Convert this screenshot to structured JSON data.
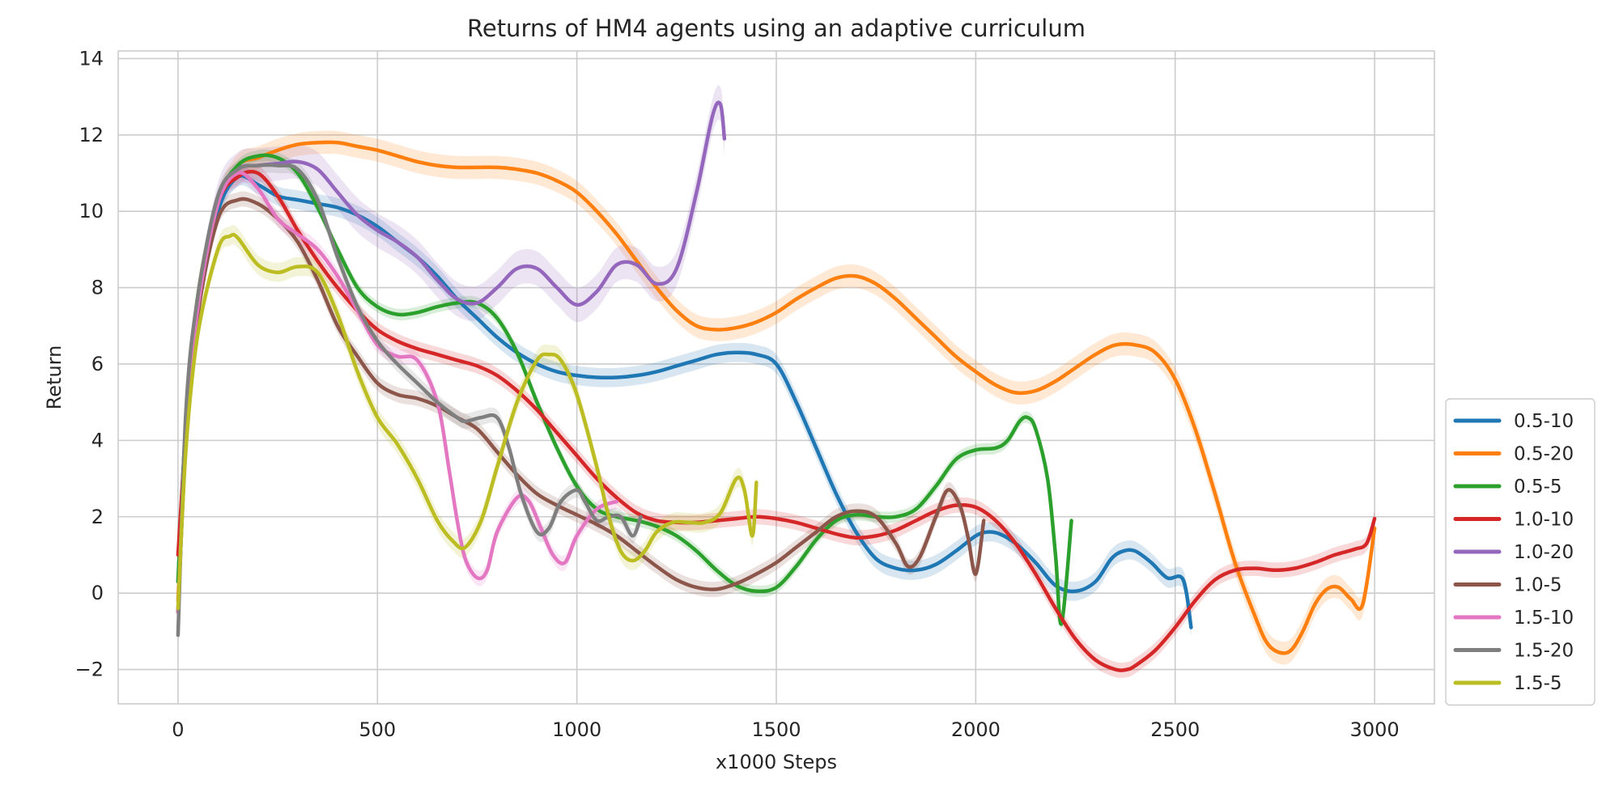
{
  "chart_data": {
    "type": "line",
    "title": "Returns of HM4 agents using an adaptive curriculum",
    "xlabel": "x1000 Steps",
    "ylabel": "Return",
    "xlim": [
      -150,
      3150
    ],
    "ylim": [
      -2.9,
      14.2
    ],
    "xticks": [
      0,
      500,
      1000,
      1500,
      2000,
      2500,
      3000
    ],
    "xtick_labels": [
      "0",
      "500",
      "1000",
      "1500",
      "2000",
      "2500",
      "3000"
    ],
    "yticks": [
      -2,
      0,
      2,
      4,
      6,
      8,
      10,
      12,
      14
    ],
    "ytick_labels": [
      "−2",
      "0",
      "2",
      "4",
      "6",
      "8",
      "10",
      "12",
      "14"
    ],
    "grid": true,
    "legend_position": "right, outside, lower",
    "series": [
      {
        "name": "0.5-10",
        "color": "#1f77b4",
        "band": 0.25,
        "x": [
          0,
          20,
          50,
          100,
          150,
          200,
          250,
          300,
          350,
          400,
          450,
          500,
          550,
          600,
          650,
          700,
          750,
          800,
          850,
          900,
          950,
          1000,
          1050,
          1100,
          1150,
          1200,
          1250,
          1300,
          1350,
          1400,
          1450,
          1500,
          1550,
          1600,
          1650,
          1700,
          1750,
          1800,
          1850,
          1900,
          1950,
          2000,
          2030,
          2060,
          2100,
          2150,
          2200,
          2250,
          2300,
          2340,
          2370,
          2400,
          2440,
          2480,
          2520,
          2540
        ],
        "y": [
          0.3,
          4.5,
          7.5,
          10.0,
          10.9,
          10.7,
          10.4,
          10.3,
          10.2,
          10.1,
          9.9,
          9.6,
          9.2,
          8.8,
          8.3,
          7.7,
          7.2,
          6.7,
          6.3,
          6.0,
          5.8,
          5.7,
          5.65,
          5.65,
          5.7,
          5.8,
          5.95,
          6.1,
          6.25,
          6.3,
          6.25,
          6.0,
          5.0,
          3.8,
          2.6,
          1.6,
          0.9,
          0.65,
          0.6,
          0.75,
          1.1,
          1.5,
          1.6,
          1.55,
          1.3,
          0.8,
          0.2,
          0.05,
          0.3,
          0.9,
          1.1,
          1.1,
          0.8,
          0.4,
          0.35,
          -0.9
        ]
      },
      {
        "name": "0.5-20",
        "color": "#ff7f0e",
        "band": 0.3,
        "x": [
          0,
          20,
          50,
          100,
          150,
          200,
          250,
          300,
          350,
          400,
          450,
          500,
          550,
          600,
          650,
          700,
          750,
          800,
          850,
          900,
          950,
          1000,
          1050,
          1100,
          1150,
          1200,
          1250,
          1300,
          1350,
          1400,
          1450,
          1500,
          1550,
          1600,
          1650,
          1700,
          1750,
          1800,
          1850,
          1900,
          1950,
          2000,
          2050,
          2100,
          2150,
          2200,
          2250,
          2300,
          2350,
          2400,
          2450,
          2500,
          2550,
          2600,
          2650,
          2700,
          2730,
          2760,
          2790,
          2820,
          2850,
          2880,
          2910,
          2940,
          2970,
          3000
        ],
        "y": [
          -0.2,
          4.0,
          7.8,
          10.2,
          11.2,
          11.4,
          11.6,
          11.75,
          11.8,
          11.8,
          11.7,
          11.6,
          11.45,
          11.3,
          11.2,
          11.15,
          11.15,
          11.15,
          11.1,
          11.0,
          10.8,
          10.5,
          10.0,
          9.4,
          8.7,
          8.0,
          7.4,
          7.0,
          6.9,
          6.95,
          7.1,
          7.35,
          7.7,
          8.0,
          8.25,
          8.3,
          8.1,
          7.7,
          7.2,
          6.7,
          6.2,
          5.8,
          5.45,
          5.25,
          5.3,
          5.55,
          5.9,
          6.25,
          6.5,
          6.5,
          6.3,
          5.6,
          4.3,
          2.6,
          0.8,
          -0.6,
          -1.3,
          -1.55,
          -1.5,
          -1.0,
          -0.3,
          0.1,
          0.15,
          -0.15,
          -0.3,
          1.7
        ]
      },
      {
        "name": "0.5-5",
        "color": "#2ca02c",
        "band": 0.15,
        "x": [
          0,
          20,
          50,
          100,
          150,
          200,
          250,
          300,
          350,
          400,
          450,
          500,
          550,
          600,
          650,
          700,
          750,
          800,
          850,
          900,
          950,
          1000,
          1050,
          1100,
          1150,
          1200,
          1250,
          1300,
          1350,
          1400,
          1450,
          1500,
          1550,
          1600,
          1650,
          1700,
          1750,
          1800,
          1850,
          1900,
          1950,
          2000,
          2050,
          2080,
          2110,
          2130,
          2150,
          2180,
          2200,
          2215,
          2240
        ],
        "y": [
          0.3,
          4.5,
          7.8,
          10.3,
          11.2,
          11.45,
          11.4,
          11.0,
          10.1,
          9.0,
          8.0,
          7.5,
          7.3,
          7.35,
          7.5,
          7.6,
          7.6,
          7.2,
          6.3,
          5.0,
          3.8,
          2.8,
          2.2,
          2.0,
          1.9,
          1.75,
          1.5,
          1.1,
          0.6,
          0.2,
          0.05,
          0.15,
          0.7,
          1.4,
          1.9,
          2.05,
          2.0,
          2.0,
          2.2,
          2.8,
          3.5,
          3.75,
          3.8,
          4.0,
          4.5,
          4.6,
          4.3,
          3.0,
          1.0,
          -0.8,
          1.9
        ]
      },
      {
        "name": "1.0-10",
        "color": "#d62728",
        "band": 0.2,
        "x": [
          0,
          20,
          50,
          100,
          150,
          200,
          250,
          300,
          350,
          400,
          450,
          500,
          550,
          600,
          650,
          700,
          750,
          800,
          850,
          900,
          950,
          1000,
          1050,
          1100,
          1150,
          1200,
          1250,
          1300,
          1350,
          1400,
          1450,
          1500,
          1550,
          1600,
          1650,
          1700,
          1750,
          1800,
          1850,
          1900,
          1950,
          2000,
          2050,
          2100,
          2150,
          2200,
          2250,
          2300,
          2350,
          2380,
          2400,
          2450,
          2500,
          2550,
          2600,
          2650,
          2700,
          2750,
          2800,
          2850,
          2900,
          2950,
          2980,
          3000
        ],
        "y": [
          1.0,
          4.2,
          7.5,
          10.2,
          10.9,
          11.0,
          10.4,
          9.5,
          8.7,
          8.0,
          7.4,
          6.9,
          6.6,
          6.4,
          6.25,
          6.1,
          5.95,
          5.7,
          5.3,
          4.8,
          4.2,
          3.6,
          3.0,
          2.5,
          2.1,
          1.9,
          1.85,
          1.85,
          1.9,
          1.95,
          2.0,
          1.95,
          1.85,
          1.7,
          1.55,
          1.45,
          1.5,
          1.65,
          1.9,
          2.15,
          2.3,
          2.25,
          1.9,
          1.3,
          0.5,
          -0.4,
          -1.2,
          -1.75,
          -2.0,
          -2.0,
          -1.9,
          -1.5,
          -0.9,
          -0.2,
          0.35,
          0.6,
          0.65,
          0.6,
          0.65,
          0.8,
          1.0,
          1.15,
          1.3,
          1.95
        ]
      },
      {
        "name": "1.0-20",
        "color": "#9467bd",
        "band": 0.45,
        "x": [
          0,
          20,
          50,
          100,
          150,
          200,
          250,
          300,
          350,
          400,
          450,
          500,
          550,
          600,
          650,
          700,
          750,
          800,
          850,
          900,
          950,
          1000,
          1050,
          1100,
          1150,
          1200,
          1250,
          1300,
          1340,
          1360,
          1370
        ],
        "y": [
          -0.5,
          4.0,
          7.5,
          10.3,
          11.1,
          11.2,
          11.25,
          11.3,
          11.1,
          10.5,
          9.9,
          9.5,
          9.2,
          8.8,
          8.2,
          7.7,
          7.6,
          8.0,
          8.5,
          8.5,
          8.0,
          7.55,
          7.9,
          8.6,
          8.6,
          8.1,
          8.5,
          10.5,
          12.5,
          12.8,
          11.9
        ]
      },
      {
        "name": "1.0-5",
        "color": "#8c564b",
        "band": 0.2,
        "x": [
          0,
          20,
          50,
          100,
          150,
          200,
          250,
          300,
          350,
          400,
          450,
          500,
          550,
          600,
          650,
          700,
          750,
          800,
          850,
          900,
          950,
          1000,
          1050,
          1100,
          1150,
          1200,
          1250,
          1300,
          1350,
          1400,
          1450,
          1500,
          1550,
          1600,
          1650,
          1700,
          1750,
          1800,
          1830,
          1860,
          1900,
          1930,
          1960,
          1980,
          2000,
          2020
        ],
        "y": [
          -0.5,
          4.0,
          7.3,
          9.8,
          10.3,
          10.2,
          9.8,
          9.2,
          8.2,
          7.0,
          6.2,
          5.5,
          5.2,
          5.1,
          4.9,
          4.6,
          4.3,
          3.7,
          3.1,
          2.6,
          2.3,
          2.05,
          1.8,
          1.5,
          1.1,
          0.7,
          0.35,
          0.15,
          0.1,
          0.25,
          0.5,
          0.8,
          1.2,
          1.6,
          2.0,
          2.15,
          2.0,
          1.3,
          0.7,
          0.95,
          2.0,
          2.7,
          2.3,
          1.5,
          0.5,
          1.9
        ]
      },
      {
        "name": "1.5-10",
        "color": "#e377c2",
        "band": 0.2,
        "x": [
          0,
          20,
          50,
          100,
          150,
          200,
          250,
          300,
          350,
          400,
          450,
          500,
          550,
          600,
          650,
          680,
          700,
          720,
          750,
          775,
          800,
          850,
          880,
          910,
          940,
          970,
          1000,
          1050,
          1100
        ],
        "y": [
          -0.5,
          4.2,
          7.5,
          10.2,
          11.0,
          10.6,
          9.8,
          9.4,
          9.0,
          8.3,
          7.4,
          6.5,
          6.2,
          6.1,
          5.0,
          3.2,
          1.9,
          0.9,
          0.4,
          0.6,
          1.6,
          2.5,
          2.4,
          1.7,
          1.0,
          0.8,
          1.5,
          2.2,
          2.4
        ]
      },
      {
        "name": "1.5-20",
        "color": "#7f7f7f",
        "band": 0.2,
        "x": [
          0,
          20,
          50,
          100,
          150,
          200,
          250,
          300,
          350,
          400,
          450,
          500,
          550,
          600,
          650,
          700,
          720,
          760,
          800,
          830,
          860,
          900,
          930,
          960,
          1000,
          1020,
          1050,
          1080,
          1110,
          1140,
          1160
        ],
        "y": [
          -1.1,
          4.8,
          7.8,
          10.4,
          11.1,
          11.2,
          11.2,
          11.1,
          10.3,
          8.8,
          7.5,
          6.6,
          6.0,
          5.5,
          5.0,
          4.6,
          4.5,
          4.6,
          4.6,
          3.8,
          2.6,
          1.6,
          1.7,
          2.4,
          2.7,
          2.4,
          1.9,
          2.0,
          2.0,
          1.5,
          2.0
        ]
      },
      {
        "name": "1.5-5",
        "color": "#bcbd22",
        "band": 0.25,
        "x": [
          0,
          20,
          50,
          100,
          130,
          150,
          200,
          250,
          300,
          350,
          400,
          450,
          500,
          550,
          600,
          650,
          690,
          720,
          760,
          800,
          850,
          900,
          930,
          960,
          1000,
          1050,
          1080,
          1110,
          1140,
          1170,
          1200,
          1240,
          1280,
          1320,
          1360,
          1400,
          1420,
          1440,
          1450
        ],
        "y": [
          -0.4,
          3.8,
          6.8,
          9.0,
          9.35,
          9.3,
          8.6,
          8.4,
          8.55,
          8.4,
          7.3,
          5.8,
          4.6,
          3.9,
          3.0,
          1.9,
          1.35,
          1.2,
          1.9,
          3.3,
          5.0,
          6.1,
          6.25,
          6.1,
          5.2,
          3.3,
          2.0,
          1.1,
          0.85,
          1.1,
          1.6,
          1.85,
          1.85,
          1.85,
          2.1,
          3.0,
          2.7,
          1.5,
          2.9
        ]
      }
    ]
  }
}
